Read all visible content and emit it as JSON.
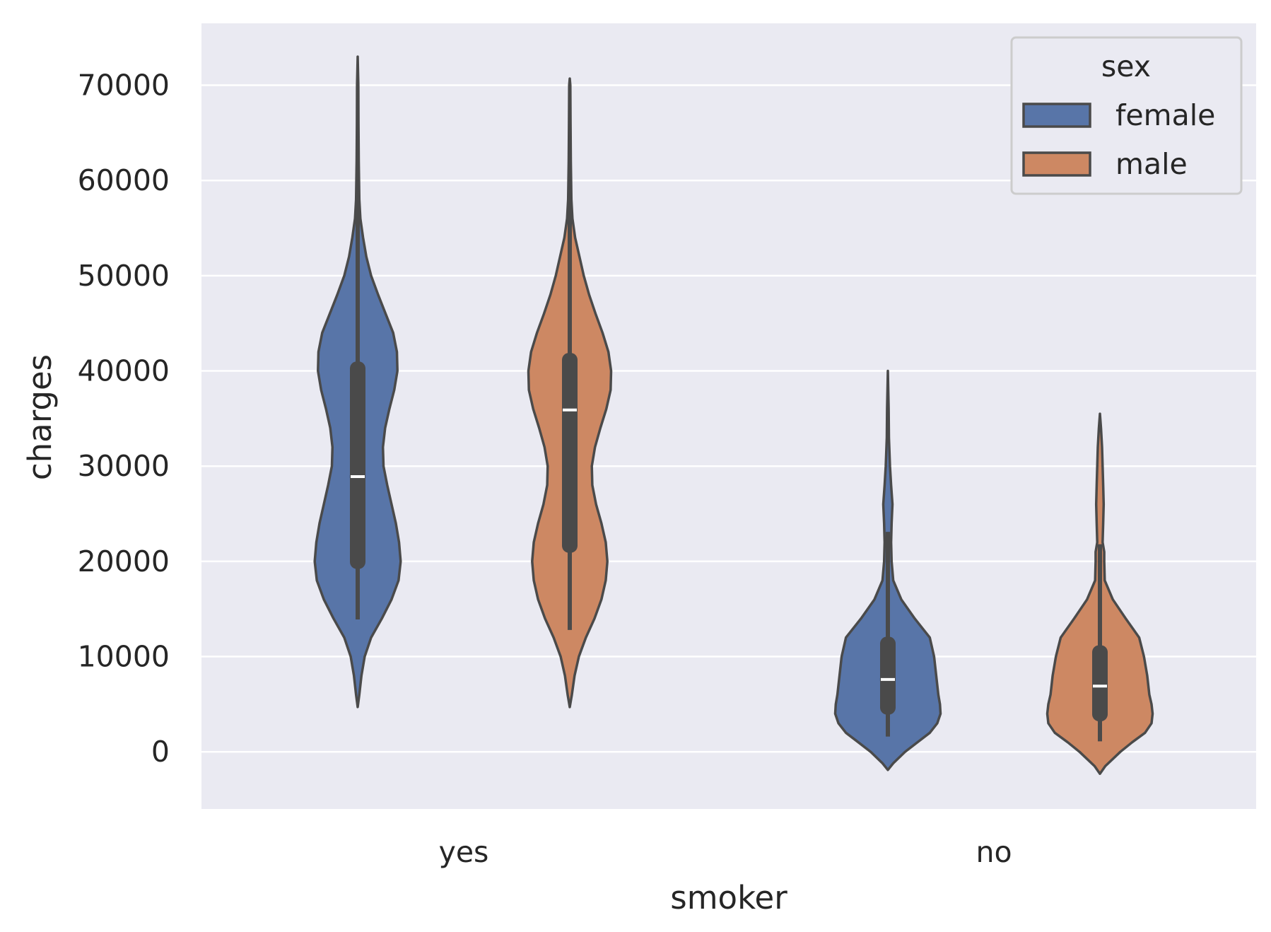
{
  "chart_data": {
    "type": "violin",
    "title": "",
    "xlabel": "smoker",
    "ylabel": "charges",
    "categories": [
      "yes",
      "no"
    ],
    "hue_title": "sex",
    "ylim": [
      -6000,
      76500
    ],
    "yticks": [
      0,
      10000,
      20000,
      30000,
      40000,
      50000,
      60000,
      70000
    ],
    "ytick_labels": [
      "0",
      "10000",
      "20000",
      "30000",
      "40000",
      "50000",
      "60000",
      "70000"
    ],
    "grid": true,
    "legend_position": "top-right",
    "series": [
      {
        "name": "female",
        "color": "#5875a8",
        "violins": [
          {
            "category": "yes",
            "q1": 19200,
            "median": 28900,
            "q3": 41000,
            "whisker_low": 13900,
            "whisker_high": 63800,
            "profile": [
              [
                4700,
                0.0
              ],
              [
                6000,
                0.03
              ],
              [
                8000,
                0.07
              ],
              [
                10000,
                0.13
              ],
              [
                12000,
                0.25
              ],
              [
                14000,
                0.45
              ],
              [
                16000,
                0.63
              ],
              [
                18000,
                0.76
              ],
              [
                20000,
                0.8
              ],
              [
                22000,
                0.77
              ],
              [
                24000,
                0.71
              ],
              [
                26000,
                0.63
              ],
              [
                28000,
                0.55
              ],
              [
                30000,
                0.48
              ],
              [
                32000,
                0.47
              ],
              [
                34000,
                0.51
              ],
              [
                36000,
                0.59
              ],
              [
                38000,
                0.68
              ],
              [
                40000,
                0.74
              ],
              [
                42000,
                0.73
              ],
              [
                44000,
                0.66
              ],
              [
                46000,
                0.52
              ],
              [
                48000,
                0.38
              ],
              [
                50000,
                0.25
              ],
              [
                52000,
                0.16
              ],
              [
                54000,
                0.1
              ],
              [
                56000,
                0.05
              ],
              [
                58000,
                0.03
              ],
              [
                62000,
                0.02
              ],
              [
                66000,
                0.015
              ],
              [
                70000,
                0.012
              ],
              [
                73000,
                0.0
              ]
            ]
          },
          {
            "category": "no",
            "q1": 3900,
            "median": 7600,
            "q3": 12100,
            "whisker_low": 1600,
            "whisker_high": 23100,
            "profile": [
              [
                -1900,
                0.0
              ],
              [
                -1200,
                0.1
              ],
              [
                0,
                0.32
              ],
              [
                1000,
                0.55
              ],
              [
                2000,
                0.78
              ],
              [
                3000,
                0.92
              ],
              [
                4000,
                0.98
              ],
              [
                5000,
                0.97
              ],
              [
                6000,
                0.94
              ],
              [
                8000,
                0.9
              ],
              [
                10000,
                0.86
              ],
              [
                12000,
                0.78
              ],
              [
                14000,
                0.5
              ],
              [
                16000,
                0.25
              ],
              [
                18000,
                0.1
              ],
              [
                20000,
                0.07
              ],
              [
                22000,
                0.06
              ],
              [
                24000,
                0.07
              ],
              [
                26000,
                0.085
              ],
              [
                28000,
                0.06
              ],
              [
                30000,
                0.04
              ],
              [
                33000,
                0.02
              ],
              [
                36000,
                0.015
              ],
              [
                40000,
                0.0
              ]
            ]
          }
        ]
      },
      {
        "name": "male",
        "color": "#cd8863",
        "violins": [
          {
            "category": "yes",
            "q1": 20900,
            "median": 35900,
            "q3": 41900,
            "whisker_low": 12800,
            "whisker_high": 62900,
            "profile": [
              [
                4700,
                0.0
              ],
              [
                6000,
                0.04
              ],
              [
                8000,
                0.09
              ],
              [
                10000,
                0.17
              ],
              [
                12000,
                0.3
              ],
              [
                14000,
                0.46
              ],
              [
                16000,
                0.59
              ],
              [
                18000,
                0.67
              ],
              [
                20000,
                0.7
              ],
              [
                22000,
                0.67
              ],
              [
                24000,
                0.59
              ],
              [
                26000,
                0.49
              ],
              [
                28000,
                0.42
              ],
              [
                30000,
                0.41
              ],
              [
                32000,
                0.47
              ],
              [
                34000,
                0.57
              ],
              [
                36000,
                0.68
              ],
              [
                38000,
                0.76
              ],
              [
                40000,
                0.77
              ],
              [
                42000,
                0.72
              ],
              [
                44000,
                0.61
              ],
              [
                46000,
                0.48
              ],
              [
                48000,
                0.36
              ],
              [
                50000,
                0.26
              ],
              [
                52000,
                0.18
              ],
              [
                54000,
                0.1
              ],
              [
                56000,
                0.05
              ],
              [
                58000,
                0.03
              ],
              [
                62000,
                0.02
              ],
              [
                66000,
                0.015
              ],
              [
                70000,
                0.01
              ],
              [
                70700,
                0.0
              ]
            ]
          },
          {
            "category": "no",
            "q1": 3200,
            "median": 6900,
            "q3": 11200,
            "whisker_low": 1100,
            "whisker_high": 21800,
            "profile": [
              [
                -2300,
                0.0
              ],
              [
                -1500,
                0.1
              ],
              [
                0,
                0.38
              ],
              [
                1000,
                0.6
              ],
              [
                2000,
                0.84
              ],
              [
                3000,
                0.96
              ],
              [
                4000,
                0.98
              ],
              [
                5000,
                0.96
              ],
              [
                6000,
                0.92
              ],
              [
                8000,
                0.88
              ],
              [
                10000,
                0.82
              ],
              [
                12000,
                0.73
              ],
              [
                14000,
                0.48
              ],
              [
                16000,
                0.24
              ],
              [
                18000,
                0.09
              ],
              [
                20000,
                0.08
              ],
              [
                21000,
                0.08
              ],
              [
                22000,
                0.05
              ],
              [
                24000,
                0.06
              ],
              [
                26000,
                0.07
              ],
              [
                28000,
                0.06
              ],
              [
                30000,
                0.05
              ],
              [
                32000,
                0.04
              ],
              [
                34000,
                0.02
              ],
              [
                35500,
                0.0
              ]
            ]
          }
        ]
      }
    ]
  }
}
